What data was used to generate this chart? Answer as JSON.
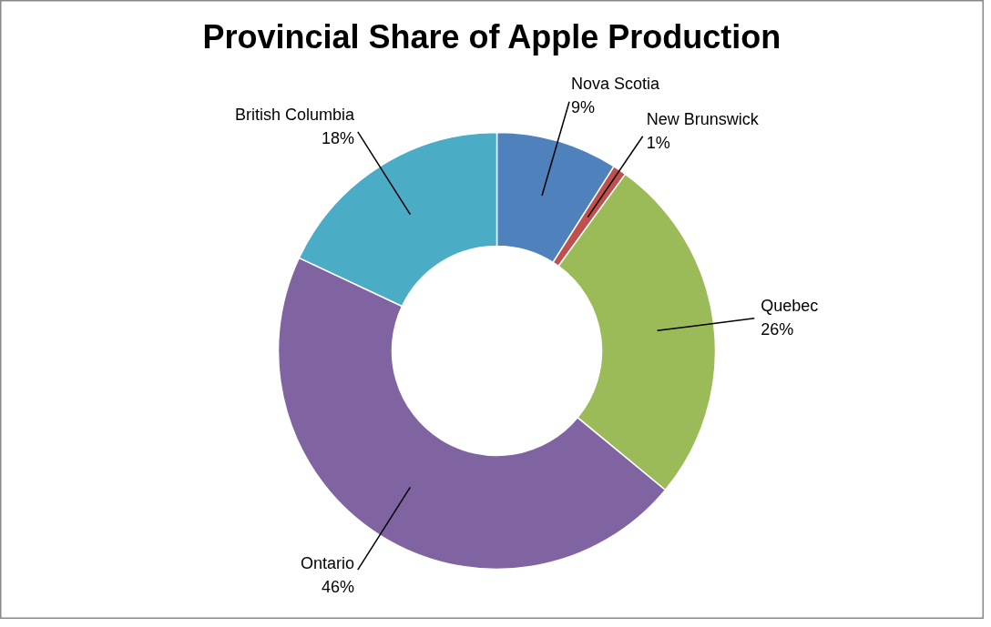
{
  "chart_data": {
    "type": "donut",
    "title": "Provincial Share of Apple Production",
    "categories": [
      "Nova Scotia",
      "New Brunswick",
      "Quebec",
      "Ontario",
      "British Columbia"
    ],
    "values": [
      9,
      1,
      26,
      46,
      18
    ],
    "colors": [
      "#4f81bd",
      "#c0504d",
      "#9bbb59",
      "#8064a2",
      "#4bacc6"
    ],
    "value_labels": [
      "9%",
      "1%",
      "26%",
      "46%",
      "18%"
    ],
    "legend": false
  }
}
